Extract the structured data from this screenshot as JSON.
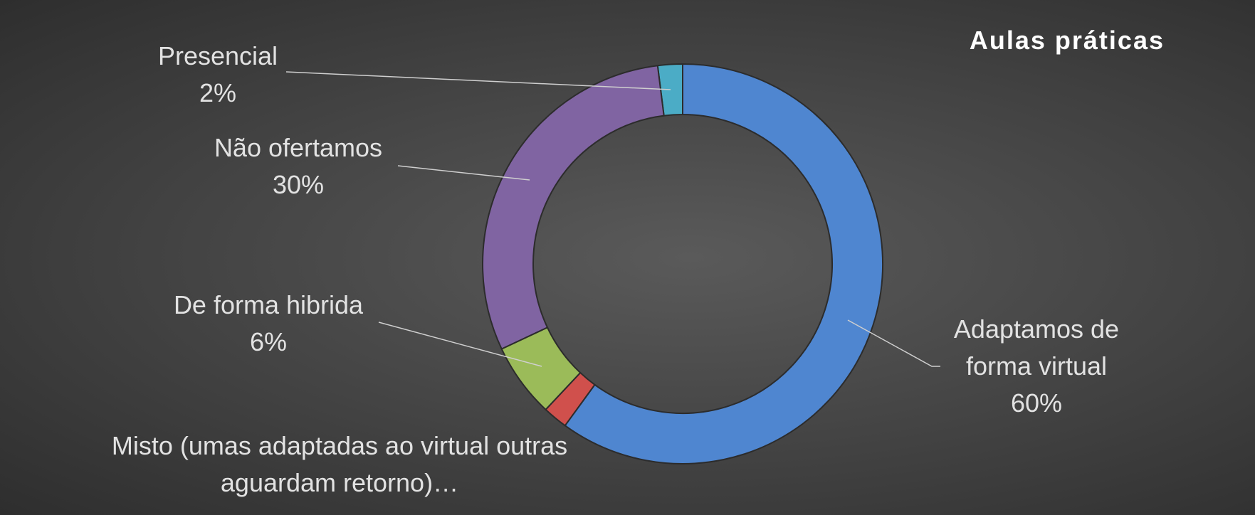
{
  "chart_data": {
    "type": "donut",
    "title": "Aulas práticas",
    "categories": [
      "Adaptamos de forma virtual",
      "Misto (umas adaptadas ao virtual outras aguardam retorno)…",
      "De forma hibrida",
      "Não ofertamos",
      "Presencial"
    ],
    "values": [
      60,
      2,
      6,
      30,
      2
    ],
    "value_labels": [
      "60%",
      null,
      "6%",
      "30%",
      "2%"
    ],
    "colors": [
      "#4f86d0",
      "#d0504c",
      "#9bbb59",
      "#8064a2",
      "#4bacc6"
    ]
  }
}
